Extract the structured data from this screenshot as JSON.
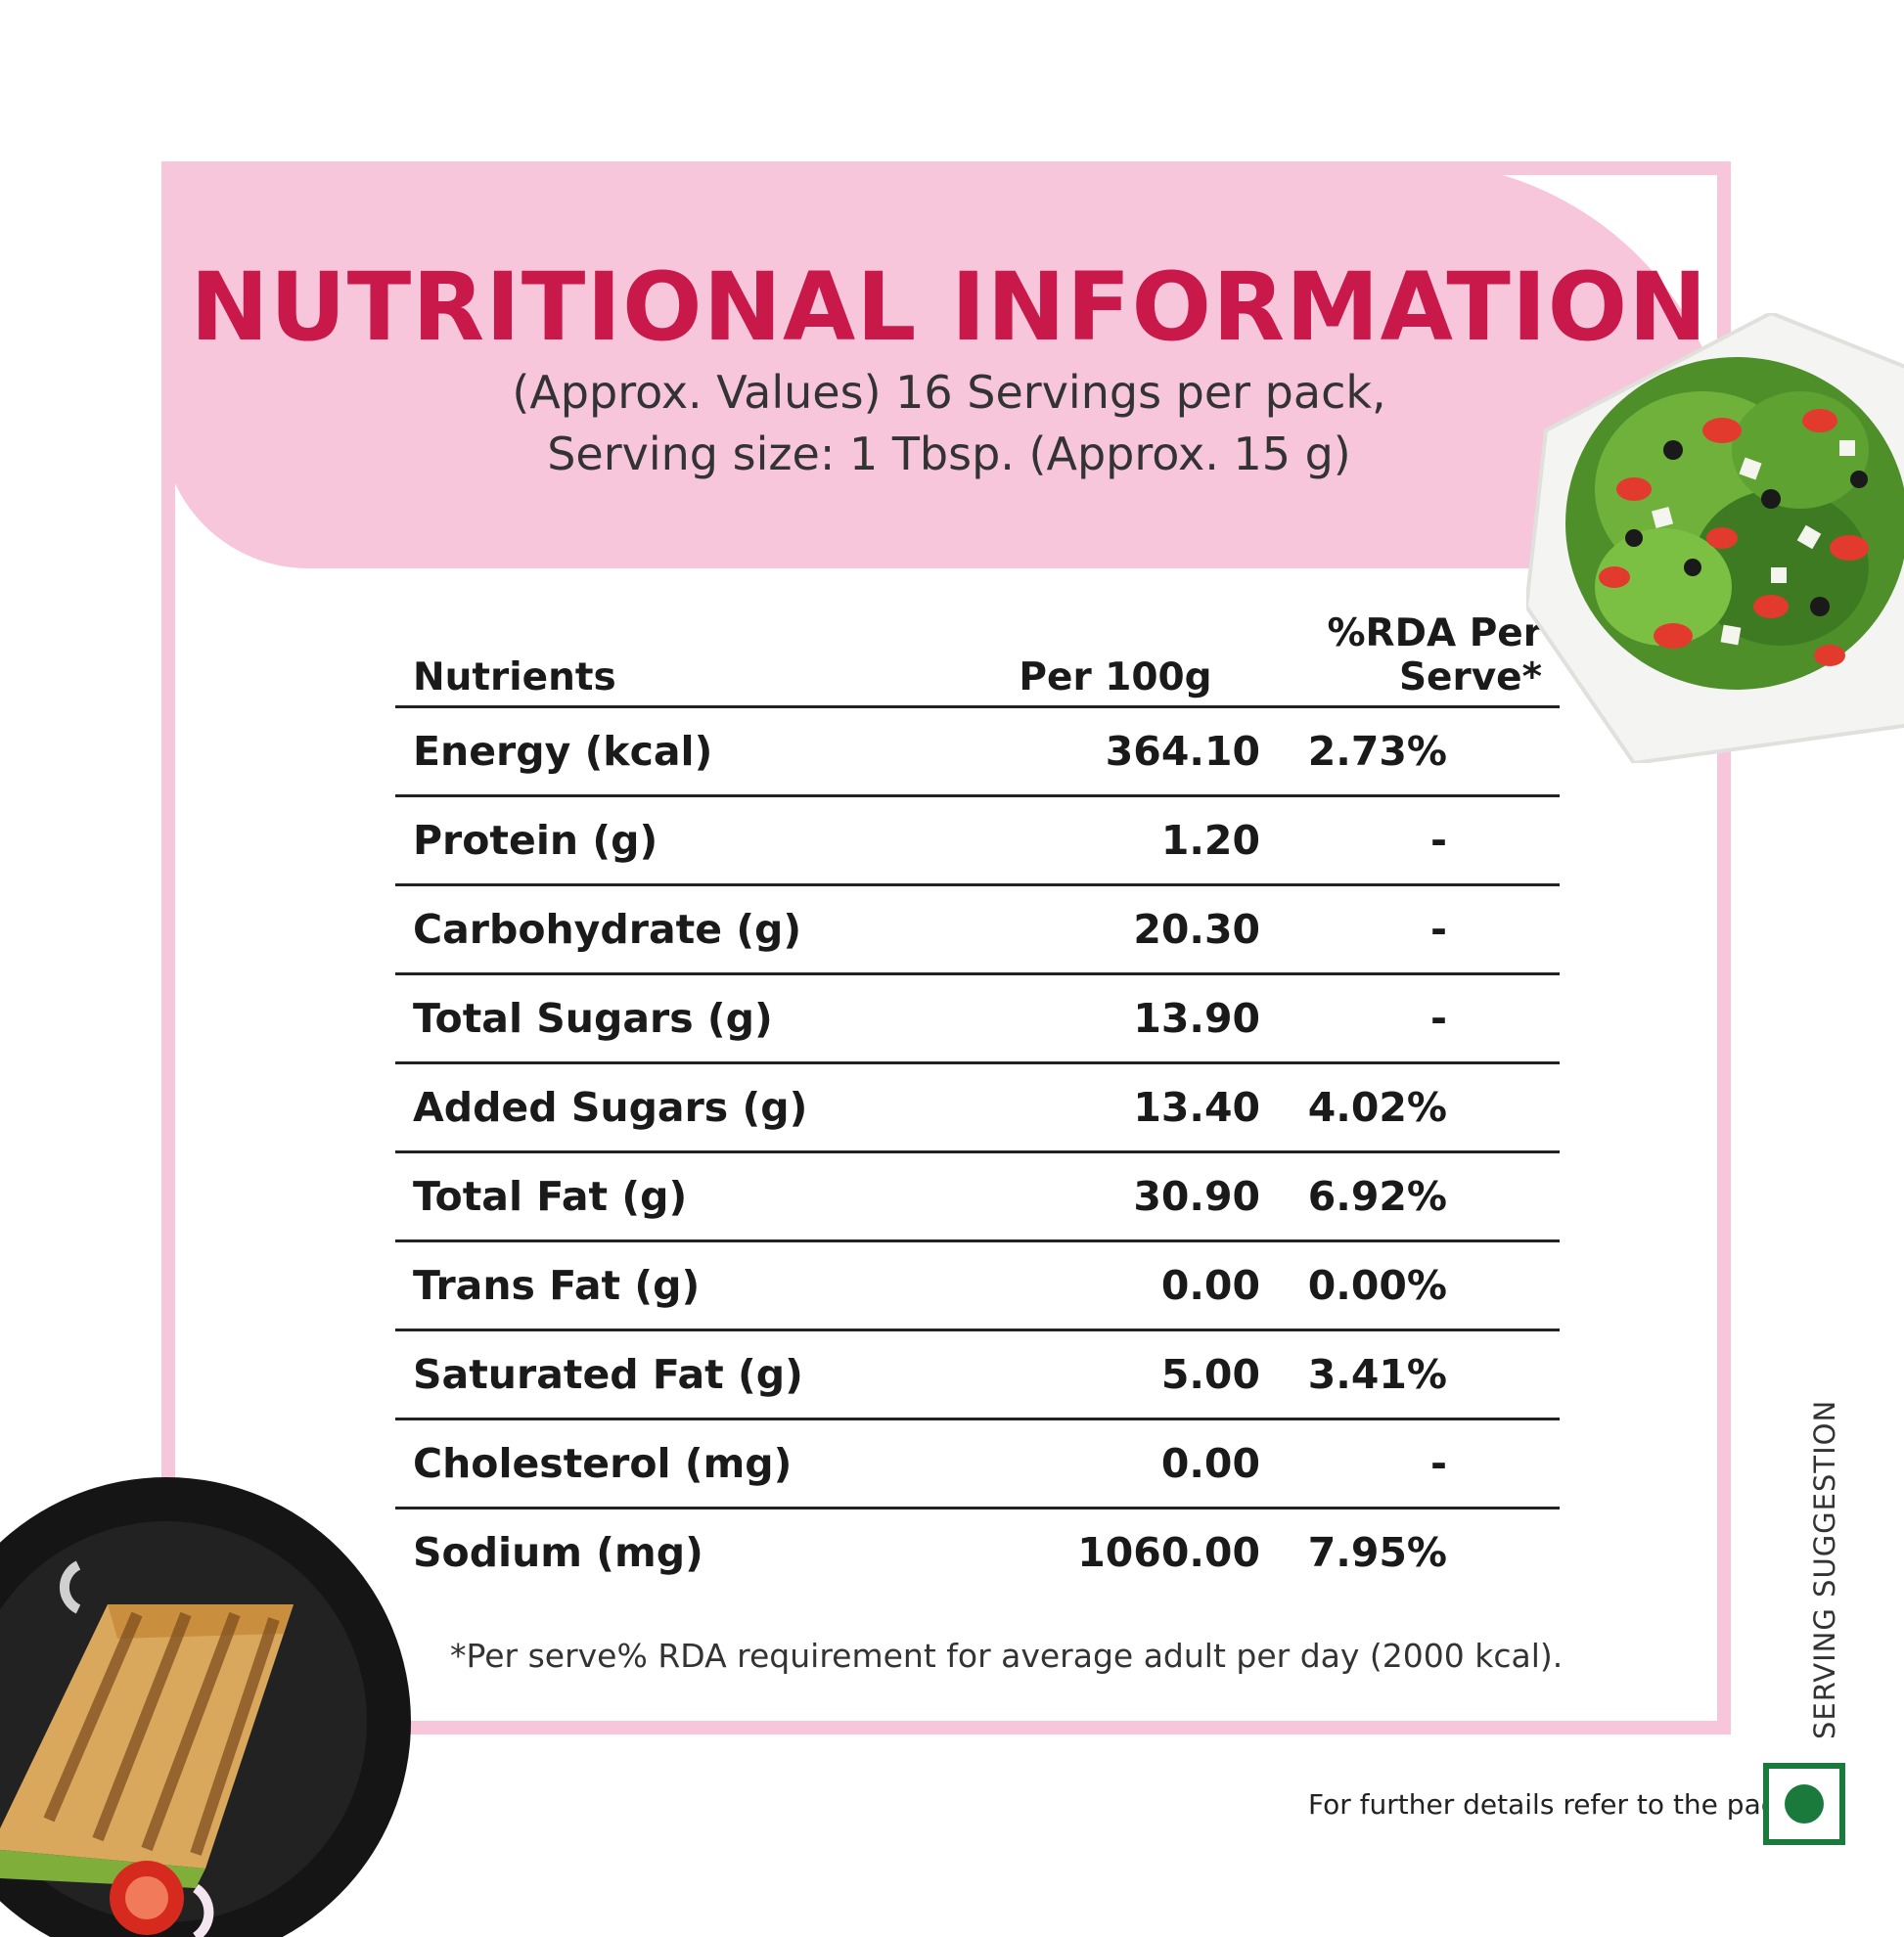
{
  "header": {
    "title": "NUTRITIONAL INFORMATION",
    "subtitle_line1": "(Approx. Values) 16 Servings per pack,",
    "subtitle_line2": "Serving size: 1 Tbsp. (Approx. 15 g)"
  },
  "table": {
    "headers": [
      "Nutrients",
      "Per 100g",
      "%RDA Per Serve*"
    ],
    "rows": [
      {
        "nutrient": "Energy (kcal)",
        "per100g": "364.10",
        "rda": "2.73%"
      },
      {
        "nutrient": "Protein (g)",
        "per100g": "1.20",
        "rda": "-"
      },
      {
        "nutrient": "Carbohydrate (g)",
        "per100g": "20.30",
        "rda": "-"
      },
      {
        "nutrient": "Total Sugars (g)",
        "per100g": "13.90",
        "rda": "-"
      },
      {
        "nutrient": "Added Sugars (g)",
        "per100g": "13.40",
        "rda": "4.02%"
      },
      {
        "nutrient": "Total Fat (g)",
        "per100g": "30.90",
        "rda": "6.92%"
      },
      {
        "nutrient": "Trans Fat (g)",
        "per100g": "0.00",
        "rda": "0.00%"
      },
      {
        "nutrient": "Saturated Fat (g)",
        "per100g": "5.00",
        "rda": "3.41%"
      },
      {
        "nutrient": "Cholesterol (mg)",
        "per100g": "0.00",
        "rda": "-"
      },
      {
        "nutrient": "Sodium (mg)",
        "per100g": "1060.00",
        "rda": "7.95%"
      }
    ]
  },
  "footnote": "*Per serve% RDA requirement for average adult per day (2000 kcal).",
  "further_details": "For further details refer to the pack.",
  "serving_suggestion": "SERVING SUGGESTION",
  "colors": {
    "accent_pink": "#f7c6db",
    "title_red": "#c9184a",
    "veg_green": "#1a7a3c"
  },
  "icons": [
    "veg-symbol-icon",
    "salad-bowl-image",
    "sandwich-plate-image"
  ]
}
